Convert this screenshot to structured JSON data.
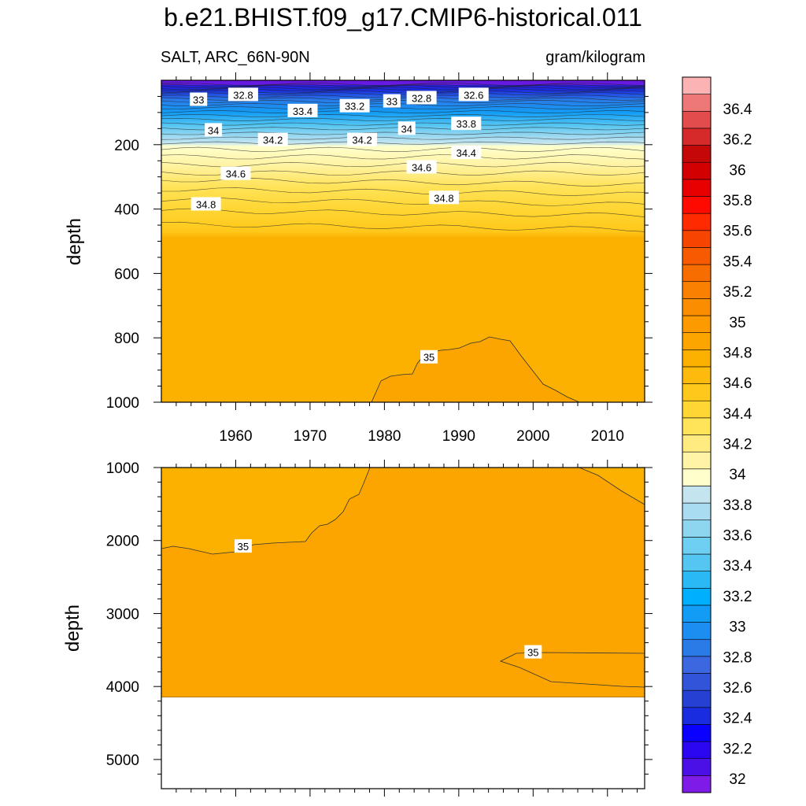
{
  "title": "b.e21.BHIST.f09_g17.CMIP6-historical.011",
  "left_string": "SALT, ARC_66N-90N",
  "right_string": "gram/kilogram",
  "chart_data": [
    {
      "type": "contour",
      "panel": "upper",
      "ylabel": "depth",
      "ylim": [
        1000,
        0
      ],
      "xlim": [
        1950,
        2015
      ],
      "x_ticks": [
        1960,
        1970,
        1980,
        1990,
        2000,
        2010
      ],
      "y_ticks": [
        200,
        400,
        600,
        800,
        1000
      ],
      "x_ticklabels": [
        "1960",
        "1970",
        "1980",
        "1990",
        "2000",
        "2010"
      ],
      "y_ticklabels": [
        "200",
        "400",
        "600",
        "800",
        "1000"
      ],
      "contour_labels": [
        {
          "text": "33",
          "x": 1955,
          "y": 60
        },
        {
          "text": "32.8",
          "x": 1961,
          "y": 45
        },
        {
          "text": "33.4",
          "x": 1969,
          "y": 95
        },
        {
          "text": "33.2",
          "x": 1976,
          "y": 80
        },
        {
          "text": "33",
          "x": 1981,
          "y": 65
        },
        {
          "text": "32.8",
          "x": 1985,
          "y": 55
        },
        {
          "text": "32.6",
          "x": 1992,
          "y": 45
        },
        {
          "text": "34",
          "x": 1957,
          "y": 155
        },
        {
          "text": "34.2",
          "x": 1965,
          "y": 185
        },
        {
          "text": "34.2",
          "x": 1977,
          "y": 185
        },
        {
          "text": "34",
          "x": 1983,
          "y": 150
        },
        {
          "text": "33.8",
          "x": 1991,
          "y": 135
        },
        {
          "text": "34.4",
          "x": 1991,
          "y": 225
        },
        {
          "text": "34.6",
          "x": 1960,
          "y": 290
        },
        {
          "text": "34.6",
          "x": 1985,
          "y": 270
        },
        {
          "text": "34.8",
          "x": 1956,
          "y": 385
        },
        {
          "text": "34.8",
          "x": 1988,
          "y": 365
        },
        {
          "text": "35",
          "x": 1986,
          "y": 860
        }
      ]
    },
    {
      "type": "contour",
      "panel": "lower",
      "ylabel": "depth",
      "ylim": [
        5400,
        1000
      ],
      "xlim": [
        1950,
        2015
      ],
      "y_ticks": [
        1000,
        2000,
        3000,
        4000,
        5000
      ],
      "y_ticklabels": [
        "1000",
        "2000",
        "3000",
        "4000",
        "5000"
      ],
      "no_data_below": 4100,
      "contour_labels": [
        {
          "text": "35",
          "x": 1961,
          "y": 2080
        },
        {
          "text": "35",
          "x": 2000,
          "y": 3530
        }
      ]
    }
  ],
  "colorbar": {
    "labels": [
      "36.4",
      "36.2",
      "36",
      "35.8",
      "35.6",
      "35.4",
      "35.2",
      "35",
      "34.8",
      "34.6",
      "34.4",
      "34.2",
      "34",
      "33.8",
      "33.6",
      "33.4",
      "33.2",
      "33",
      "32.8",
      "32.6",
      "32.4",
      "32.2",
      "32"
    ],
    "colors": [
      "#7e1be6",
      "#4b10e6",
      "#2a07f0",
      "#0a00ff",
      "#1a2ce0",
      "#2540d2",
      "#3154d8",
      "#3b68e0",
      "#2a7ae8",
      "#1c8ef2",
      "#129cf5",
      "#00b0ff",
      "#2ab9f5",
      "#55c6f2",
      "#6ecff3",
      "#8ed5f0",
      "#a9dcf0",
      "#c4e5f0",
      "#ffffcc",
      "#fff4a6",
      "#ffeb80",
      "#ffe359",
      "#ffd633",
      "#ffc81a",
      "#ffbb0d",
      "#fcb000",
      "#fca500",
      "#fc9a00",
      "#fb8d00",
      "#f98000",
      "#f86d00",
      "#f75a00",
      "#f64500",
      "#ff2a00",
      "#ff0a00",
      "#e80000",
      "#d20000",
      "#c40808",
      "#d62a2a",
      "#e24c4c",
      "#ee7777",
      "#fbb3b3"
    ]
  }
}
